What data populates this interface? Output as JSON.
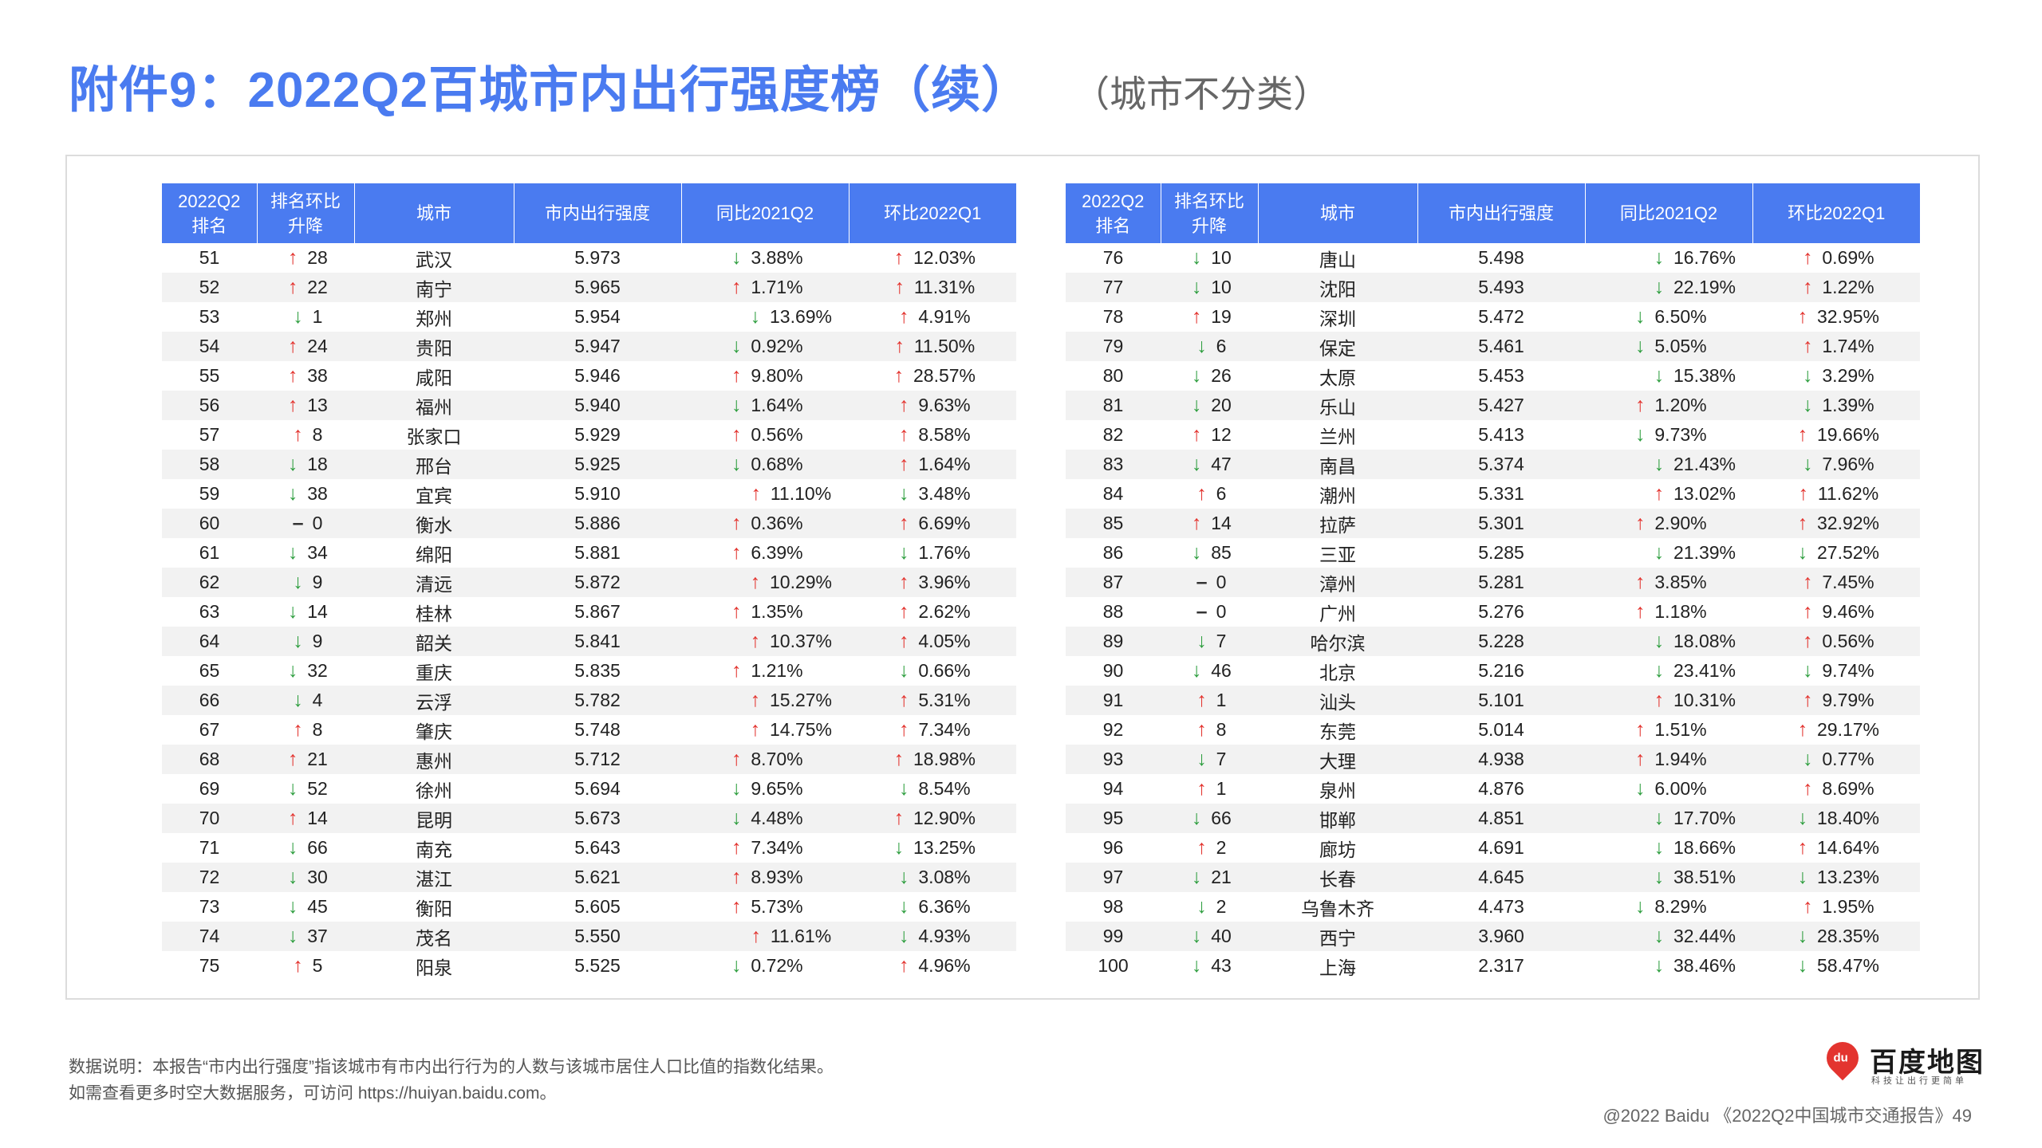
{
  "title": "附件9：2022Q2百城市内出行强度榜（续）",
  "subtitle": "（城市不分类）",
  "columns": [
    "2022Q2\n排名",
    "排名环比\n升降",
    "城市",
    "市内出行强度",
    "同比2021Q2",
    "环比2022Q1"
  ],
  "colors": {
    "accent": "#4a7bf0",
    "up": "#e3342f",
    "down": "#2e9e3f"
  },
  "left_rows": [
    {
      "rank": "51",
      "dir": "up",
      "chg": "28",
      "city": "武汉",
      "idx": "5.973",
      "yoy_dir": "down",
      "yoy": "3.88%",
      "qoq_dir": "up",
      "qoq": "12.03%"
    },
    {
      "rank": "52",
      "dir": "up",
      "chg": "22",
      "city": "南宁",
      "idx": "5.965",
      "yoy_dir": "up",
      "yoy": "1.71%",
      "qoq_dir": "up",
      "qoq": "11.31%"
    },
    {
      "rank": "53",
      "dir": "down",
      "chg": "1",
      "city": "郑州",
      "idx": "5.954",
      "yoy_dir": "down",
      "yoy": "13.69%",
      "qoq_dir": "up",
      "qoq": "4.91%"
    },
    {
      "rank": "54",
      "dir": "up",
      "chg": "24",
      "city": "贵阳",
      "idx": "5.947",
      "yoy_dir": "down",
      "yoy": "0.92%",
      "qoq_dir": "up",
      "qoq": "11.50%"
    },
    {
      "rank": "55",
      "dir": "up",
      "chg": "38",
      "city": "咸阳",
      "idx": "5.946",
      "yoy_dir": "up",
      "yoy": "9.80%",
      "qoq_dir": "up",
      "qoq": "28.57%"
    },
    {
      "rank": "56",
      "dir": "up",
      "chg": "13",
      "city": "福州",
      "idx": "5.940",
      "yoy_dir": "down",
      "yoy": "1.64%",
      "qoq_dir": "up",
      "qoq": "9.63%"
    },
    {
      "rank": "57",
      "dir": "up",
      "chg": "8",
      "city": "张家口",
      "idx": "5.929",
      "yoy_dir": "up",
      "yoy": "0.56%",
      "qoq_dir": "up",
      "qoq": "8.58%"
    },
    {
      "rank": "58",
      "dir": "down",
      "chg": "18",
      "city": "邢台",
      "idx": "5.925",
      "yoy_dir": "down",
      "yoy": "0.68%",
      "qoq_dir": "up",
      "qoq": "1.64%"
    },
    {
      "rank": "59",
      "dir": "down",
      "chg": "38",
      "city": "宜宾",
      "idx": "5.910",
      "yoy_dir": "up",
      "yoy": "11.10%",
      "qoq_dir": "down",
      "qoq": "3.48%"
    },
    {
      "rank": "60",
      "dir": "flat",
      "chg": "0",
      "city": "衡水",
      "idx": "5.886",
      "yoy_dir": "up",
      "yoy": "0.36%",
      "qoq_dir": "up",
      "qoq": "6.69%"
    },
    {
      "rank": "61",
      "dir": "down",
      "chg": "34",
      "city": "绵阳",
      "idx": "5.881",
      "yoy_dir": "up",
      "yoy": "6.39%",
      "qoq_dir": "down",
      "qoq": "1.76%"
    },
    {
      "rank": "62",
      "dir": "down",
      "chg": "9",
      "city": "清远",
      "idx": "5.872",
      "yoy_dir": "up",
      "yoy": "10.29%",
      "qoq_dir": "up",
      "qoq": "3.96%"
    },
    {
      "rank": "63",
      "dir": "down",
      "chg": "14",
      "city": "桂林",
      "idx": "5.867",
      "yoy_dir": "up",
      "yoy": "1.35%",
      "qoq_dir": "up",
      "qoq": "2.62%"
    },
    {
      "rank": "64",
      "dir": "down",
      "chg": "9",
      "city": "韶关",
      "idx": "5.841",
      "yoy_dir": "up",
      "yoy": "10.37%",
      "qoq_dir": "up",
      "qoq": "4.05%"
    },
    {
      "rank": "65",
      "dir": "down",
      "chg": "32",
      "city": "重庆",
      "idx": "5.835",
      "yoy_dir": "up",
      "yoy": "1.21%",
      "qoq_dir": "down",
      "qoq": "0.66%"
    },
    {
      "rank": "66",
      "dir": "down",
      "chg": "4",
      "city": "云浮",
      "idx": "5.782",
      "yoy_dir": "up",
      "yoy": "15.27%",
      "qoq_dir": "up",
      "qoq": "5.31%"
    },
    {
      "rank": "67",
      "dir": "up",
      "chg": "8",
      "city": "肇庆",
      "idx": "5.748",
      "yoy_dir": "up",
      "yoy": "14.75%",
      "qoq_dir": "up",
      "qoq": "7.34%"
    },
    {
      "rank": "68",
      "dir": "up",
      "chg": "21",
      "city": "惠州",
      "idx": "5.712",
      "yoy_dir": "up",
      "yoy": "8.70%",
      "qoq_dir": "up",
      "qoq": "18.98%"
    },
    {
      "rank": "69",
      "dir": "down",
      "chg": "52",
      "city": "徐州",
      "idx": "5.694",
      "yoy_dir": "down",
      "yoy": "9.65%",
      "qoq_dir": "down",
      "qoq": "8.54%"
    },
    {
      "rank": "70",
      "dir": "up",
      "chg": "14",
      "city": "昆明",
      "idx": "5.673",
      "yoy_dir": "down",
      "yoy": "4.48%",
      "qoq_dir": "up",
      "qoq": "12.90%"
    },
    {
      "rank": "71",
      "dir": "down",
      "chg": "66",
      "city": "南充",
      "idx": "5.643",
      "yoy_dir": "up",
      "yoy": "7.34%",
      "qoq_dir": "down",
      "qoq": "13.25%"
    },
    {
      "rank": "72",
      "dir": "down",
      "chg": "30",
      "city": "湛江",
      "idx": "5.621",
      "yoy_dir": "up",
      "yoy": "8.93%",
      "qoq_dir": "down",
      "qoq": "3.08%"
    },
    {
      "rank": "73",
      "dir": "down",
      "chg": "45",
      "city": "衡阳",
      "idx": "5.605",
      "yoy_dir": "up",
      "yoy": "5.73%",
      "qoq_dir": "down",
      "qoq": "6.36%"
    },
    {
      "rank": "74",
      "dir": "down",
      "chg": "37",
      "city": "茂名",
      "idx": "5.550",
      "yoy_dir": "up",
      "yoy": "11.61%",
      "qoq_dir": "down",
      "qoq": "4.93%"
    },
    {
      "rank": "75",
      "dir": "up",
      "chg": "5",
      "city": "阳泉",
      "idx": "5.525",
      "yoy_dir": "down",
      "yoy": "0.72%",
      "qoq_dir": "up",
      "qoq": "4.96%"
    }
  ],
  "right_rows": [
    {
      "rank": "76",
      "dir": "down",
      "chg": "10",
      "city": "唐山",
      "idx": "5.498",
      "yoy_dir": "down",
      "yoy": "16.76%",
      "qoq_dir": "up",
      "qoq": "0.69%"
    },
    {
      "rank": "77",
      "dir": "down",
      "chg": "10",
      "city": "沈阳",
      "idx": "5.493",
      "yoy_dir": "down",
      "yoy": "22.19%",
      "qoq_dir": "up",
      "qoq": "1.22%"
    },
    {
      "rank": "78",
      "dir": "up",
      "chg": "19",
      "city": "深圳",
      "idx": "5.472",
      "yoy_dir": "down",
      "yoy": "6.50%",
      "qoq_dir": "up",
      "qoq": "32.95%"
    },
    {
      "rank": "79",
      "dir": "down",
      "chg": "6",
      "city": "保定",
      "idx": "5.461",
      "yoy_dir": "down",
      "yoy": "5.05%",
      "qoq_dir": "up",
      "qoq": "1.74%"
    },
    {
      "rank": "80",
      "dir": "down",
      "chg": "26",
      "city": "太原",
      "idx": "5.453",
      "yoy_dir": "down",
      "yoy": "15.38%",
      "qoq_dir": "down",
      "qoq": "3.29%"
    },
    {
      "rank": "81",
      "dir": "down",
      "chg": "20",
      "city": "乐山",
      "idx": "5.427",
      "yoy_dir": "up",
      "yoy": "1.20%",
      "qoq_dir": "down",
      "qoq": "1.39%"
    },
    {
      "rank": "82",
      "dir": "up",
      "chg": "12",
      "city": "兰州",
      "idx": "5.413",
      "yoy_dir": "down",
      "yoy": "9.73%",
      "qoq_dir": "up",
      "qoq": "19.66%"
    },
    {
      "rank": "83",
      "dir": "down",
      "chg": "47",
      "city": "南昌",
      "idx": "5.374",
      "yoy_dir": "down",
      "yoy": "21.43%",
      "qoq_dir": "down",
      "qoq": "7.96%"
    },
    {
      "rank": "84",
      "dir": "up",
      "chg": "6",
      "city": "潮州",
      "idx": "5.331",
      "yoy_dir": "up",
      "yoy": "13.02%",
      "qoq_dir": "up",
      "qoq": "11.62%"
    },
    {
      "rank": "85",
      "dir": "up",
      "chg": "14",
      "city": "拉萨",
      "idx": "5.301",
      "yoy_dir": "up",
      "yoy": "2.90%",
      "qoq_dir": "up",
      "qoq": "32.92%"
    },
    {
      "rank": "86",
      "dir": "down",
      "chg": "85",
      "city": "三亚",
      "idx": "5.285",
      "yoy_dir": "down",
      "yoy": "21.39%",
      "qoq_dir": "down",
      "qoq": "27.52%"
    },
    {
      "rank": "87",
      "dir": "flat",
      "chg": "0",
      "city": "漳州",
      "idx": "5.281",
      "yoy_dir": "up",
      "yoy": "3.85%",
      "qoq_dir": "up",
      "qoq": "7.45%"
    },
    {
      "rank": "88",
      "dir": "flat",
      "chg": "0",
      "city": "广州",
      "idx": "5.276",
      "yoy_dir": "up",
      "yoy": "1.18%",
      "qoq_dir": "up",
      "qoq": "9.46%"
    },
    {
      "rank": "89",
      "dir": "down",
      "chg": "7",
      "city": "哈尔滨",
      "idx": "5.228",
      "yoy_dir": "down",
      "yoy": "18.08%",
      "qoq_dir": "up",
      "qoq": "0.56%"
    },
    {
      "rank": "90",
      "dir": "down",
      "chg": "46",
      "city": "北京",
      "idx": "5.216",
      "yoy_dir": "down",
      "yoy": "23.41%",
      "qoq_dir": "down",
      "qoq": "9.74%"
    },
    {
      "rank": "91",
      "dir": "up",
      "chg": "1",
      "city": "汕头",
      "idx": "5.101",
      "yoy_dir": "up",
      "yoy": "10.31%",
      "qoq_dir": "up",
      "qoq": "9.79%"
    },
    {
      "rank": "92",
      "dir": "up",
      "chg": "8",
      "city": "东莞",
      "idx": "5.014",
      "yoy_dir": "up",
      "yoy": "1.51%",
      "qoq_dir": "up",
      "qoq": "29.17%"
    },
    {
      "rank": "93",
      "dir": "down",
      "chg": "7",
      "city": "大理",
      "idx": "4.938",
      "yoy_dir": "up",
      "yoy": "1.94%",
      "qoq_dir": "down",
      "qoq": "0.77%"
    },
    {
      "rank": "94",
      "dir": "up",
      "chg": "1",
      "city": "泉州",
      "idx": "4.876",
      "yoy_dir": "down",
      "yoy": "6.00%",
      "qoq_dir": "up",
      "qoq": "8.69%"
    },
    {
      "rank": "95",
      "dir": "down",
      "chg": "66",
      "city": "邯郸",
      "idx": "4.851",
      "yoy_dir": "down",
      "yoy": "17.70%",
      "qoq_dir": "down",
      "qoq": "18.40%"
    },
    {
      "rank": "96",
      "dir": "up",
      "chg": "2",
      "city": "廊坊",
      "idx": "4.691",
      "yoy_dir": "down",
      "yoy": "18.66%",
      "qoq_dir": "up",
      "qoq": "14.64%"
    },
    {
      "rank": "97",
      "dir": "down",
      "chg": "21",
      "city": "长春",
      "idx": "4.645",
      "yoy_dir": "down",
      "yoy": "38.51%",
      "qoq_dir": "down",
      "qoq": "13.23%"
    },
    {
      "rank": "98",
      "dir": "down",
      "chg": "2",
      "city": "乌鲁木齐",
      "idx": "4.473",
      "yoy_dir": "down",
      "yoy": "8.29%",
      "qoq_dir": "up",
      "qoq": "1.95%"
    },
    {
      "rank": "99",
      "dir": "down",
      "chg": "40",
      "city": "西宁",
      "idx": "3.960",
      "yoy_dir": "down",
      "yoy": "32.44%",
      "qoq_dir": "down",
      "qoq": "28.35%"
    },
    {
      "rank": "100",
      "dir": "down",
      "chg": "43",
      "city": "上海",
      "idx": "2.317",
      "yoy_dir": "down",
      "yoy": "38.46%",
      "qoq_dir": "down",
      "qoq": "58.47%"
    }
  ],
  "note_line1": "数据说明：本报告“市内出行强度”指该城市有市内出行行为的人数与该城市居住人口比值的指数化结果。",
  "note_line2": "如需查看更多时空大数据服务，可访问 https://huiyan.baidu.com。",
  "logo": {
    "mark": "du",
    "name": "百度地图",
    "tagline": "科技让出行更简单"
  },
  "footer": "@2022 Baidu 《2022Q2中国城市交通报告》49",
  "arrows": {
    "up": "↑",
    "down": "↓",
    "flat": "–"
  }
}
